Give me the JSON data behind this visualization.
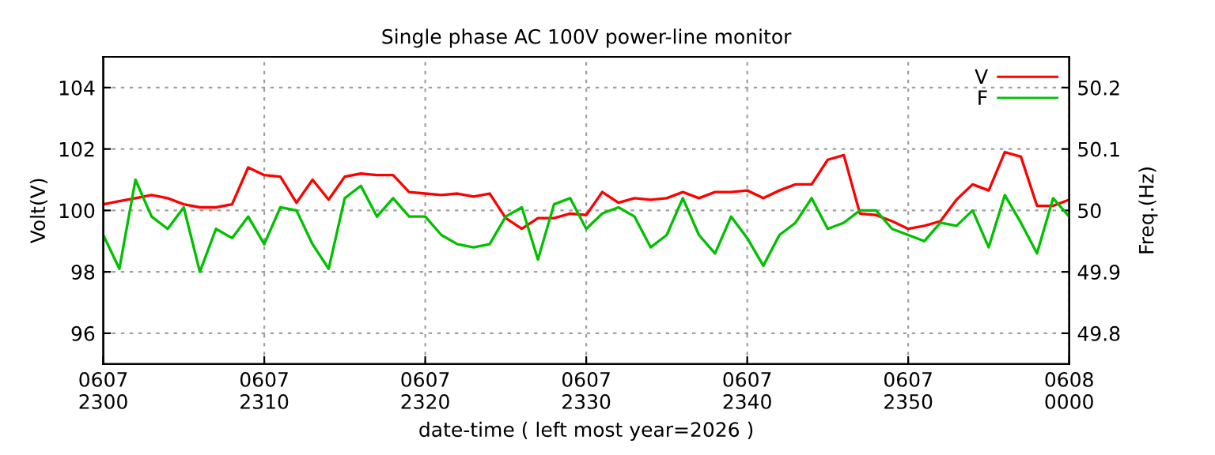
{
  "chart_data": {
    "type": "line",
    "title": "Single phase AC 100V power-line monitor",
    "xlabel": "date-time ( left most year=2026 )",
    "ylabel": "Volt(V)",
    "y2label": "Freq.(Hz)",
    "x": [
      "2026-06-07T23:00",
      "2026-06-07T23:01",
      "2026-06-07T23:02",
      "2026-06-07T23:03",
      "2026-06-07T23:04",
      "2026-06-07T23:05",
      "2026-06-07T23:06",
      "2026-06-07T23:07",
      "2026-06-07T23:08",
      "2026-06-07T23:09",
      "2026-06-07T23:10",
      "2026-06-07T23:11",
      "2026-06-07T23:12",
      "2026-06-07T23:13",
      "2026-06-07T23:14",
      "2026-06-07T23:15",
      "2026-06-07T23:16",
      "2026-06-07T23:17",
      "2026-06-07T23:18",
      "2026-06-07T23:19",
      "2026-06-07T23:20",
      "2026-06-07T23:21",
      "2026-06-07T23:22",
      "2026-06-07T23:23",
      "2026-06-07T23:24",
      "2026-06-07T23:25",
      "2026-06-07T23:26",
      "2026-06-07T23:27",
      "2026-06-07T23:28",
      "2026-06-07T23:29",
      "2026-06-07T23:30",
      "2026-06-07T23:31",
      "2026-06-07T23:32",
      "2026-06-07T23:33",
      "2026-06-07T23:34",
      "2026-06-07T23:35",
      "2026-06-07T23:36",
      "2026-06-07T23:37",
      "2026-06-07T23:38",
      "2026-06-07T23:39",
      "2026-06-07T23:40",
      "2026-06-07T23:41",
      "2026-06-07T23:42",
      "2026-06-07T23:43",
      "2026-06-07T23:44",
      "2026-06-07T23:45",
      "2026-06-07T23:46",
      "2026-06-07T23:47",
      "2026-06-07T23:48",
      "2026-06-07T23:49",
      "2026-06-07T23:50",
      "2026-06-07T23:51",
      "2026-06-07T23:52",
      "2026-06-07T23:53",
      "2026-06-07T23:54",
      "2026-06-07T23:55",
      "2026-06-07T23:56",
      "2026-06-07T23:57",
      "2026-06-07T23:58",
      "2026-06-07T23:59",
      "2026-06-08T00:00"
    ],
    "series": [
      {
        "name": "V",
        "color": "#ff0000",
        "values": [
          100.2,
          100.3,
          100.4,
          100.5,
          100.4,
          100.2,
          100.1,
          100.1,
          100.2,
          101.4,
          101.15,
          101.1,
          100.25,
          101.0,
          100.35,
          101.1,
          101.2,
          101.15,
          101.15,
          100.6,
          100.55,
          100.5,
          100.55,
          100.45,
          100.55,
          99.75,
          99.4,
          99.75,
          99.75,
          99.9,
          99.85,
          100.6,
          100.25,
          100.4,
          100.35,
          100.4,
          100.6,
          100.4,
          100.6,
          100.6,
          100.65,
          100.4,
          100.65,
          100.85,
          100.85,
          101.65,
          101.8,
          99.9,
          99.85,
          99.65,
          99.4,
          99.5,
          99.65,
          100.35,
          100.85,
          100.65,
          101.9,
          101.75,
          100.15,
          100.15,
          100.35
        ]
      },
      {
        "name": "F",
        "color": "#00c000",
        "axis": "y2",
        "values": [
          49.96,
          49.905,
          50.05,
          49.99,
          49.97,
          50.005,
          49.9,
          49.97,
          49.955,
          49.99,
          49.945,
          50.005,
          50.0,
          49.945,
          49.905,
          50.02,
          50.04,
          49.99,
          50.02,
          49.99,
          49.99,
          49.96,
          49.945,
          49.94,
          49.945,
          49.99,
          50.005,
          49.92,
          50.01,
          50.02,
          49.97,
          49.995,
          50.005,
          49.99,
          49.94,
          49.96,
          50.02,
          49.96,
          49.93,
          49.99,
          49.955,
          49.91,
          49.96,
          49.98,
          50.02,
          49.97,
          49.98,
          50.0,
          50.0,
          49.97,
          49.96,
          49.95,
          49.98,
          49.975,
          50.0,
          49.94,
          50.025,
          49.98,
          49.93,
          50.02,
          49.99
        ]
      }
    ],
    "xlim": [
      "2026-06-07T23:00",
      "2026-06-08T00:00"
    ],
    "xticks": [
      {
        "value": "2026-06-07T23:00",
        "label": "0607\n2300"
      },
      {
        "value": "2026-06-07T23:10",
        "label": "0607\n2310"
      },
      {
        "value": "2026-06-07T23:20",
        "label": "0607\n2320"
      },
      {
        "value": "2026-06-07T23:30",
        "label": "0607\n2330"
      },
      {
        "value": "2026-06-07T23:40",
        "label": "0607\n2340"
      },
      {
        "value": "2026-06-07T23:50",
        "label": "0607\n2350"
      },
      {
        "value": "2026-06-08T00:00",
        "label": "0608\n0000"
      }
    ],
    "ylim": [
      95,
      105
    ],
    "yticks": [
      96,
      98,
      100,
      102,
      104
    ],
    "y2lim": [
      49.75,
      50.25
    ],
    "y2ticks": [
      49.8,
      49.9,
      {
        "value": 50.0,
        "label": "50"
      },
      50.1,
      50.2
    ],
    "grid": true,
    "legend": "top right",
    "line_style": "solid",
    "marker": "none"
  }
}
